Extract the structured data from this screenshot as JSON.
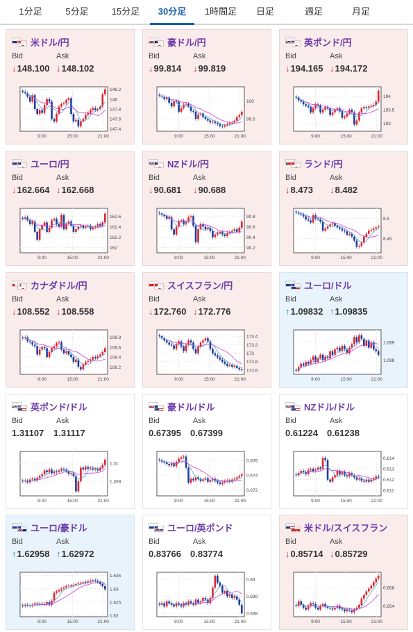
{
  "tabs": [
    {
      "label": "1分足"
    },
    {
      "label": "5分足"
    },
    {
      "label": "15分足"
    },
    {
      "label": "30分足",
      "active": true
    },
    {
      "label": "1時間足"
    },
    {
      "label": "日足"
    },
    {
      "label": "週足"
    },
    {
      "label": "月足"
    }
  ],
  "colors": {
    "down_bg": "#fbecec",
    "up_bg": "#e9f3fb",
    "bull": "#e0242b",
    "bear": "#1c3c9a",
    "ma": "#d636d6",
    "ma2": "#5aa0d8",
    "arrow_down": "#d23030",
    "arrow_up": "#1e90c8",
    "title": "#6a3aa8"
  },
  "labels": {
    "bid": "Bid",
    "ask": "Ask"
  },
  "cards": [
    {
      "pair": "米ドル/円",
      "flags": [
        "us",
        "jp"
      ],
      "trend": "down",
      "bid": "148.100",
      "ask": "148.102",
      "chart_data": {
        "type": "candlestick",
        "y_ticks": [
          "148.2",
          "148",
          "147.8",
          "147.6",
          "147.4"
        ],
        "ylim": [
          147.35,
          148.25
        ],
        "x_ticks": [
          "9:00",
          "15:00",
          "21:00"
        ],
        "close": [
          148.15,
          148.12,
          148.05,
          147.95,
          148.08,
          147.8,
          147.7,
          147.78,
          147.72,
          147.88,
          148.0,
          147.95,
          147.6,
          147.55,
          147.7,
          147.85,
          147.9,
          147.92,
          147.98,
          148.02,
          147.7,
          147.55,
          147.58,
          147.45,
          147.55,
          147.6,
          147.68,
          147.72,
          147.78,
          147.82,
          147.78,
          147.8,
          147.85,
          148.1,
          148.2
        ]
      }
    },
    {
      "pair": "豪ドル/円",
      "flags": [
        "au",
        "jp"
      ],
      "trend": "down",
      "bid": "99.814",
      "ask": "99.819",
      "chart_data": {
        "type": "candlestick",
        "y_ticks": [
          "100",
          "99.5"
        ],
        "ylim": [
          99.15,
          100.4
        ],
        "x_ticks": [
          "9:00",
          "15:00",
          "21:00"
        ],
        "close": [
          100.15,
          100.12,
          100.05,
          100.1,
          99.95,
          99.85,
          100.0,
          99.98,
          99.7,
          99.8,
          99.9,
          99.92,
          99.85,
          99.72,
          99.7,
          99.5,
          99.62,
          99.65,
          99.55,
          99.5,
          99.45,
          99.4,
          99.42,
          99.38,
          99.35,
          99.3,
          99.28,
          99.32,
          99.35,
          99.38,
          99.4,
          99.45,
          99.55,
          99.6,
          99.7
        ]
      }
    },
    {
      "pair": "英ポンド/円",
      "flags": [
        "gb",
        "jp"
      ],
      "trend": "down",
      "bid": "194.165",
      "ask": "194.172",
      "chart_data": {
        "type": "candlestick",
        "y_ticks": [
          "194",
          "193.5",
          "193"
        ],
        "ylim": [
          192.7,
          194.35
        ],
        "x_ticks": [
          "9:00",
          "15:00",
          "21:00"
        ],
        "close": [
          193.95,
          193.85,
          193.8,
          193.7,
          193.65,
          193.6,
          193.4,
          193.55,
          193.7,
          193.65,
          193.4,
          193.5,
          193.6,
          193.55,
          193.3,
          193.4,
          193.5,
          193.55,
          193.45,
          193.2,
          193.25,
          193.35,
          193.5,
          193.4,
          192.95,
          193.1,
          193.4,
          193.55,
          193.6,
          193.58,
          193.62,
          193.65,
          193.68,
          193.8,
          194.2
        ]
      }
    },
    {
      "pair": "ユーロ/円",
      "flags": [
        "eu",
        "jp"
      ],
      "trend": "down",
      "bid": "162.664",
      "ask": "162.668",
      "chart_data": {
        "type": "candlestick",
        "y_ticks": [
          "162.6",
          "162.4",
          "162.2",
          "162"
        ],
        "ylim": [
          161.9,
          162.75
        ],
        "x_ticks": [
          "9:00",
          "15:00",
          "21:00"
        ],
        "close": [
          162.55,
          162.58,
          162.52,
          162.45,
          162.5,
          162.3,
          162.15,
          162.35,
          162.42,
          162.48,
          162.3,
          162.38,
          162.52,
          162.55,
          162.45,
          162.4,
          162.62,
          162.35,
          162.45,
          162.5,
          162.42,
          162.3,
          162.35,
          162.4,
          162.42,
          162.38,
          162.4,
          162.42,
          162.35,
          162.38,
          162.4,
          162.45,
          162.42,
          162.48,
          162.65
        ]
      }
    },
    {
      "pair": "NZドル/円",
      "flags": [
        "nz",
        "jp"
      ],
      "trend": "down",
      "bid": "90.681",
      "ask": "90.688",
      "chart_data": {
        "type": "candlestick",
        "y_ticks": [
          "90.8",
          "90.6",
          "90.4",
          "90.2"
        ],
        "ylim": [
          90.1,
          90.95
        ],
        "x_ticks": [
          "9:00",
          "15:00",
          "21:00"
        ],
        "close": [
          90.85,
          90.82,
          90.8,
          90.75,
          90.78,
          90.55,
          90.45,
          90.6,
          90.7,
          90.72,
          90.65,
          90.7,
          90.78,
          90.8,
          90.62,
          90.3,
          90.55,
          90.65,
          90.6,
          90.55,
          90.58,
          90.52,
          90.4,
          90.45,
          90.48,
          90.5,
          90.45,
          90.42,
          90.48,
          90.5,
          90.52,
          90.55,
          90.5,
          90.58,
          90.7
        ]
      }
    },
    {
      "pair": "ランド/円",
      "flags": [
        "za",
        "jp"
      ],
      "trend": "down",
      "bid": "8.473",
      "ask": "8.482",
      "chart_data": {
        "type": "candlestick",
        "y_ticks": [
          "8.5",
          "8.45"
        ],
        "ylim": [
          8.415,
          8.525
        ],
        "x_ticks": [
          "9:00",
          "15:00",
          "21:00"
        ],
        "close": [
          8.515,
          8.512,
          8.51,
          8.505,
          8.498,
          8.495,
          8.49,
          8.508,
          8.5,
          8.498,
          8.492,
          8.47,
          8.475,
          8.48,
          8.485,
          8.488,
          8.482,
          8.478,
          8.475,
          8.47,
          8.468,
          8.46,
          8.462,
          8.455,
          8.445,
          8.43,
          8.432,
          8.44,
          8.455,
          8.462,
          8.47,
          8.472,
          8.475,
          8.478,
          8.48
        ]
      }
    },
    {
      "pair": "カナダドル/円",
      "flags": [
        "ca",
        "jp"
      ],
      "trend": "down",
      "bid": "108.552",
      "ask": "108.558",
      "chart_data": {
        "type": "candlestick",
        "y_ticks": [
          "108.8",
          "108.6",
          "108.4",
          "108.2"
        ],
        "ylim": [
          108.05,
          108.95
        ],
        "x_ticks": [
          "9:00",
          "15:00",
          "21:00"
        ],
        "close": [
          108.78,
          108.8,
          108.72,
          108.7,
          108.65,
          108.62,
          108.45,
          108.55,
          108.6,
          108.58,
          108.4,
          108.5,
          108.58,
          108.62,
          108.68,
          108.7,
          108.55,
          108.48,
          108.52,
          108.45,
          108.4,
          108.3,
          108.35,
          108.2,
          108.15,
          108.25,
          108.3,
          108.32,
          108.35,
          108.4,
          108.38,
          108.42,
          108.45,
          108.5,
          108.58
        ]
      }
    },
    {
      "pair": "スイスフラン/円",
      "flags": [
        "ch",
        "jp"
      ],
      "trend": "down",
      "bid": "172.760",
      "ask": "172.776",
      "chart_data": {
        "type": "candlestick",
        "y_ticks": [
          "173.4",
          "173.2",
          "173",
          "172.8",
          "172.6"
        ],
        "ylim": [
          172.5,
          173.55
        ],
        "x_ticks": [
          "9:00",
          "15:00",
          "21:00"
        ],
        "close": [
          173.4,
          173.35,
          173.3,
          173.25,
          173.2,
          173.18,
          173.1,
          173.22,
          173.28,
          173.15,
          173.05,
          173.2,
          173.3,
          173.25,
          173.1,
          173.0,
          173.15,
          173.25,
          173.3,
          173.35,
          173.28,
          173.1,
          173.0,
          172.95,
          172.9,
          172.85,
          172.8,
          172.75,
          172.7,
          172.72,
          172.68,
          172.7,
          172.65,
          172.62,
          172.6
        ]
      }
    },
    {
      "pair": "ユーロ/ドル",
      "flags": [
        "eu",
        "us"
      ],
      "trend": "up",
      "bid": "1.09832",
      "ask": "1.09835",
      "chart_data": {
        "type": "candlestick",
        "y_ticks": [
          "1.099",
          "1.098"
        ],
        "ylim": [
          1.0972,
          1.0997
        ],
        "x_ticks": [
          "9:00",
          "15:00",
          "21:00"
        ],
        "close": [
          1.0974,
          1.0976,
          1.0978,
          1.0977,
          1.0979,
          1.0978,
          1.098,
          1.0982,
          1.0979,
          1.0981,
          1.0983,
          1.098,
          1.0982,
          1.0981,
          1.0985,
          1.0983,
          1.0986,
          1.0987,
          1.0985,
          1.0988,
          1.0986,
          1.0984,
          1.0987,
          1.0989,
          1.0993,
          1.099,
          1.0994,
          1.0992,
          1.0988,
          1.0991,
          1.0987,
          1.099,
          1.0986,
          1.0985,
          1.0983
        ]
      }
    },
    {
      "pair": "英ポンド/ドル",
      "flags": [
        "gb",
        "us"
      ],
      "trend": "flat",
      "bid": "1.31107",
      "ask": "1.31117",
      "chart_data": {
        "type": "candlestick",
        "y_ticks": [
          "1.31",
          "1.308"
        ],
        "ylim": [
          1.3064,
          1.3113
        ],
        "x_ticks": [
          "9:00",
          "15:00",
          "21:00"
        ],
        "close": [
          1.308,
          1.3081,
          1.3079,
          1.3082,
          1.3083,
          1.3081,
          1.3084,
          1.3086,
          1.3088,
          1.3092,
          1.309,
          1.3093,
          1.3089,
          1.3091,
          1.309,
          1.3092,
          1.3094,
          1.3093,
          1.3091,
          1.3088,
          1.3089,
          1.3086,
          1.3069,
          1.308,
          1.3095,
          1.3093,
          1.3096,
          1.3094,
          1.3095,
          1.3093,
          1.3094,
          1.3092,
          1.3095,
          1.3098,
          1.3104
        ]
      }
    },
    {
      "pair": "豪ドル/ドル",
      "flags": [
        "au",
        "us"
      ],
      "trend": "flat",
      "bid": "0.67395",
      "ask": "0.67399",
      "chart_data": {
        "type": "candlestick",
        "y_ticks": [
          "0.676",
          "0.674",
          "0.672"
        ],
        "ylim": [
          0.6712,
          0.6772
        ],
        "x_ticks": [
          "9:00",
          "15:00",
          "21:00"
        ],
        "close": [
          0.676,
          0.6758,
          0.6757,
          0.6755,
          0.6753,
          0.6756,
          0.6752,
          0.6758,
          0.6762,
          0.6764,
          0.6765,
          0.675,
          0.673,
          0.6735,
          0.6733,
          0.6737,
          0.6735,
          0.6732,
          0.6734,
          0.6736,
          0.6731,
          0.6733,
          0.6735,
          0.6732,
          0.673,
          0.6728,
          0.673,
          0.6732,
          0.6733,
          0.6731,
          0.6734,
          0.6735,
          0.6737,
          0.6739,
          0.6741
        ]
      }
    },
    {
      "pair": "NZドル/ドル",
      "flags": [
        "nz",
        "us"
      ],
      "trend": "flat",
      "bid": "0.61224",
      "ask": "0.61238",
      "chart_data": {
        "type": "candlestick",
        "y_ticks": [
          "0.614",
          "0.613",
          "0.612",
          "0.611"
        ],
        "ylim": [
          0.6105,
          0.6146
        ],
        "x_ticks": [
          "9:00",
          "15:00",
          "21:00"
        ],
        "close": [
          0.6124,
          0.6126,
          0.6128,
          0.6127,
          0.6125,
          0.6129,
          0.613,
          0.6128,
          0.6129,
          0.6131,
          0.613,
          0.614,
          0.6138,
          0.612,
          0.6118,
          0.6122,
          0.6124,
          0.6128,
          0.6125,
          0.6127,
          0.6124,
          0.6123,
          0.6126,
          0.6124,
          0.6122,
          0.612,
          0.6121,
          0.6119,
          0.6118,
          0.612,
          0.6118,
          0.612,
          0.6121,
          0.6123,
          0.6122
        ]
      }
    },
    {
      "pair": "ユーロ/豪ドル",
      "flags": [
        "eu",
        "au"
      ],
      "trend": "up",
      "bid": "1.62958",
      "ask": "1.62972",
      "chart_data": {
        "type": "candlestick",
        "y_ticks": [
          "1.635",
          "1.63",
          "1.625",
          "1.62"
        ],
        "ylim": [
          1.6195,
          1.6362
        ],
        "x_ticks": [
          "9:00",
          "15:00",
          "21:00"
        ],
        "close": [
          1.6235,
          1.624,
          1.6238,
          1.6236,
          1.624,
          1.6245,
          1.6242,
          1.6244,
          1.6241,
          1.6243,
          1.625,
          1.624,
          1.6255,
          1.6285,
          1.629,
          1.6295,
          1.63,
          1.6305,
          1.631,
          1.6312,
          1.631,
          1.6315,
          1.6318,
          1.632,
          1.6322,
          1.6325,
          1.6323,
          1.6328,
          1.633,
          1.6332,
          1.633,
          1.6325,
          1.6318,
          1.631,
          1.6298
        ]
      }
    },
    {
      "pair": "ユーロ/英ポンド",
      "flags": [
        "eu",
        "gb"
      ],
      "trend": "flat",
      "bid": "0.83766",
      "ask": "0.83774",
      "chart_data": {
        "type": "candlestick",
        "y_ticks": [
          "0.84",
          "0.839",
          "0.838"
        ],
        "ylim": [
          0.8378,
          0.8404
        ],
        "x_ticks": [
          "9:00",
          "15:00",
          "21:00"
        ],
        "close": [
          0.8385,
          0.8386,
          0.8384,
          0.8387,
          0.8386,
          0.8385,
          0.8384,
          0.8386,
          0.8385,
          0.8384,
          0.8386,
          0.8385,
          0.8387,
          0.8386,
          0.8385,
          0.8388,
          0.8386,
          0.8387,
          0.8389,
          0.8388,
          0.8386,
          0.8389,
          0.8395,
          0.8402,
          0.8398,
          0.8396,
          0.8392,
          0.8393,
          0.839,
          0.8391,
          0.8389,
          0.839,
          0.8388,
          0.8385,
          0.838
        ]
      }
    },
    {
      "pair": "米ドル/スイスフラン",
      "flags": [
        "us",
        "ch"
      ],
      "trend": "down",
      "bid": "0.85714",
      "ask": "0.85729",
      "chart_data": {
        "type": "candlestick",
        "y_ticks": [
          "0.856",
          "0.854"
        ],
        "ylim": [
          0.8528,
          0.8577
        ],
        "x_ticks": [
          "9:00",
          "15:00",
          "21:00"
        ],
        "close": [
          0.854,
          0.8545,
          0.8541,
          0.8538,
          0.8536,
          0.854,
          0.8543,
          0.8542,
          0.8538,
          0.8536,
          0.854,
          0.8542,
          0.8539,
          0.8538,
          0.8537,
          0.8536,
          0.8538,
          0.854,
          0.8537,
          0.8536,
          0.8534,
          0.8536,
          0.8535,
          0.8533,
          0.8536,
          0.8538,
          0.8541,
          0.8548,
          0.8552,
          0.8556,
          0.8559,
          0.8562,
          0.8566,
          0.857,
          0.8573
        ]
      }
    }
  ]
}
